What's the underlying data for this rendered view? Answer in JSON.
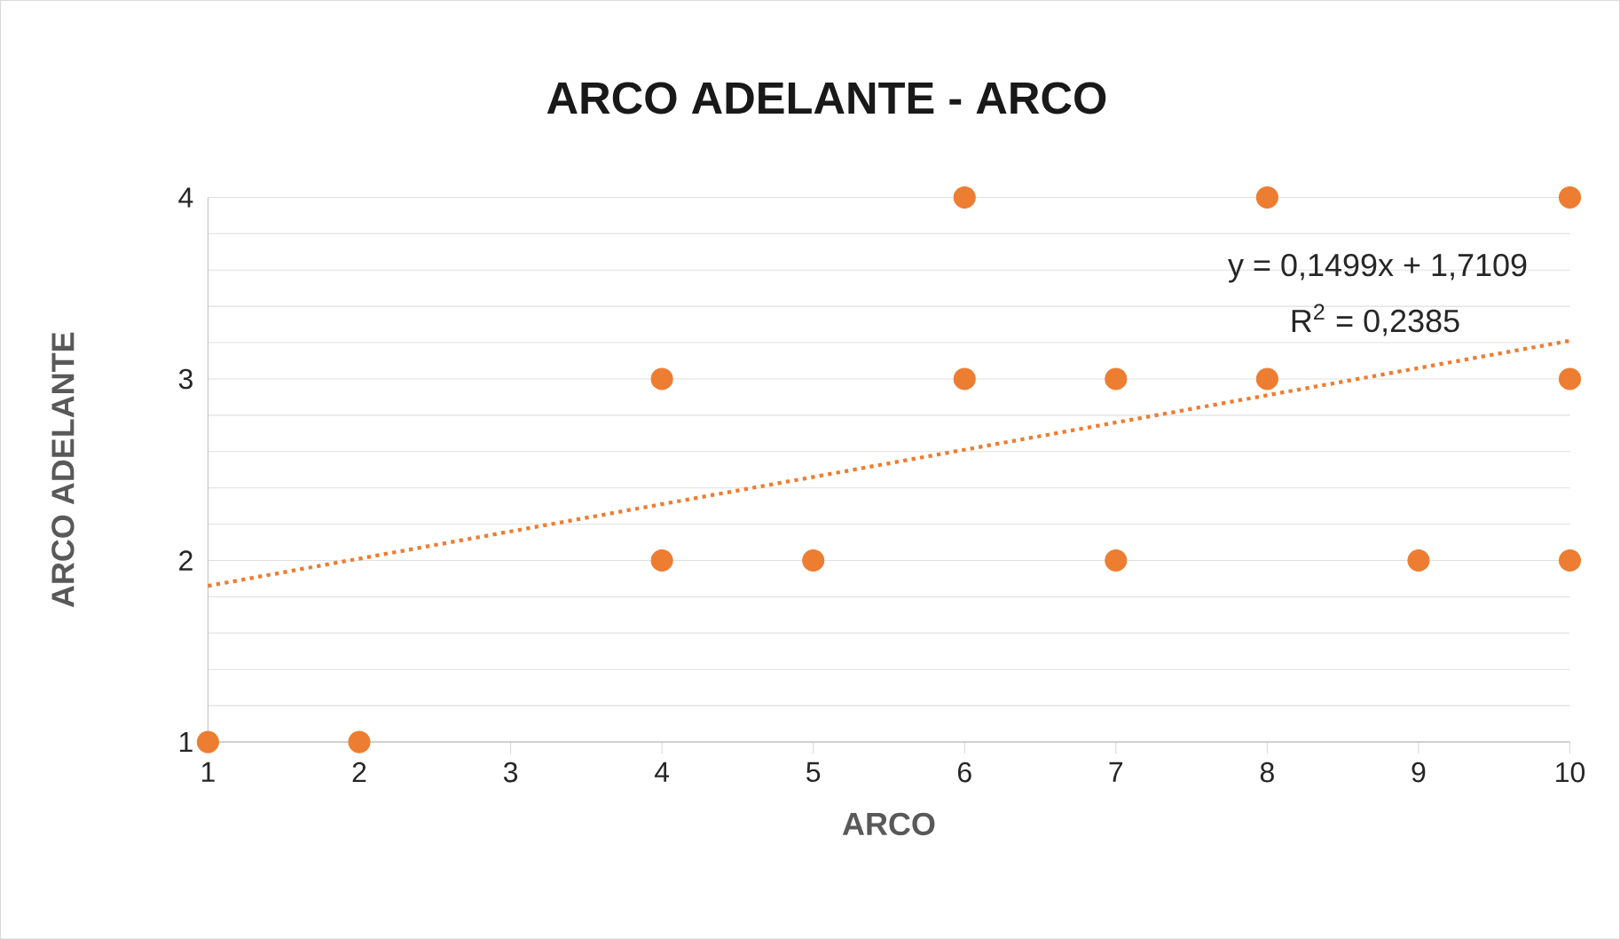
{
  "chart_data": {
    "type": "scatter",
    "title": "ARCO ADELANTE - ARCO",
    "xlabel": "ARCO",
    "ylabel": "ARCO ADELANTE",
    "xlim": [
      1,
      10
    ],
    "xticks": [
      1,
      2,
      3,
      4,
      5,
      6,
      7,
      8,
      9,
      10
    ],
    "ylim": [
      1,
      4
    ],
    "yticks": [
      1,
      {
        "value": 1.2,
        "label": null
      },
      {
        "value": 1.4,
        "label": null
      },
      {
        "value": 1.6,
        "label": null
      },
      {
        "value": 1.8,
        "label": null
      },
      2,
      {
        "value": 2.2,
        "label": null
      },
      {
        "value": 2.4,
        "label": null
      },
      {
        "value": 2.6,
        "label": null
      },
      {
        "value": 2.8,
        "label": null
      },
      3,
      {
        "value": 3.2,
        "label": null
      },
      {
        "value": 3.4,
        "label": null
      },
      {
        "value": 3.6,
        "label": null
      },
      {
        "value": 3.8,
        "label": null
      },
      4
    ],
    "grid": "y",
    "series": [
      {
        "color": "#ed7d31",
        "marker": "circle",
        "x": [
          1,
          2,
          4,
          4,
          5,
          6,
          6,
          7,
          7,
          8,
          8,
          9,
          10,
          10,
          10
        ],
        "values": [
          1,
          1,
          3,
          2,
          2,
          4,
          3,
          3,
          2,
          4,
          3,
          2,
          4,
          3,
          2
        ]
      },
      {
        "type": "line",
        "color": "#ed7d31",
        "marker": "none",
        "line_style": "dotted",
        "x": [
          1,
          10
        ],
        "values": [
          1.86,
          3.21
        ]
      }
    ],
    "annotations": [
      "y = 0,1499x + 1,7109",
      "R$^{2}$ = 0,2385"
    ]
  }
}
